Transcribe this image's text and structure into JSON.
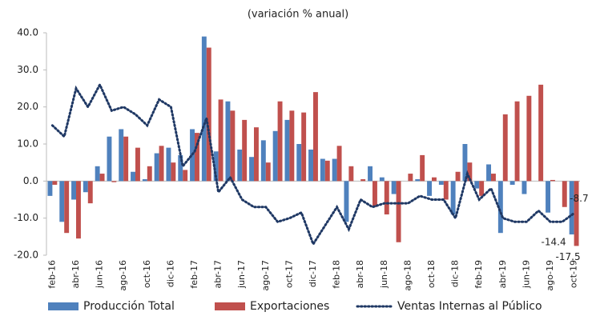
{
  "chart_data": {
    "type": "bar_line",
    "title": "(variación % anual)",
    "categories": [
      "feb-16",
      null,
      "abr-16",
      null,
      "jun-16",
      null,
      "ago-16",
      null,
      "oct-16",
      null,
      "dic-16",
      null,
      "feb-17",
      null,
      "abr-17",
      null,
      "jun-17",
      null,
      "ago-17",
      null,
      "oct-17",
      null,
      "dic-17",
      null,
      "feb-18",
      null,
      "abr-18",
      null,
      "jun-18",
      null,
      "ago-18",
      null,
      "oct-18",
      null,
      "dic-18",
      null,
      "feb-19",
      null,
      "abr-19",
      null,
      "jun-19",
      null,
      "ago-19",
      null,
      "oct-19"
    ],
    "series": [
      {
        "name": "Producción Total",
        "color": "#4f81bd",
        "kind": "bar",
        "values": [
          -4,
          -11,
          -5,
          -3,
          4,
          12,
          14,
          2.5,
          0.5,
          7.5,
          9,
          7,
          14,
          39,
          8,
          21.5,
          8.5,
          6.5,
          11,
          13.5,
          16.5,
          10,
          8.5,
          6,
          6,
          -11,
          0,
          4,
          1,
          -3.5,
          0,
          0.5,
          -4,
          -1,
          -9,
          10,
          -2,
          4.5,
          -14,
          -1,
          -3.5,
          0,
          -8.5,
          0,
          -14.4
        ]
      },
      {
        "name": "Exportaciones",
        "color": "#c0504d",
        "kind": "bar",
        "values": [
          -1,
          -14,
          -15.5,
          -6,
          2,
          -0.3,
          12,
          9,
          4,
          9.5,
          5,
          3,
          13,
          36,
          22,
          19,
          16.5,
          14.5,
          5,
          21.5,
          19,
          18.5,
          24,
          5.5,
          9.5,
          4,
          0.5,
          -7,
          -9,
          -16.5,
          2,
          7,
          1,
          -5,
          2.5,
          5,
          -4,
          2,
          18,
          21.5,
          23,
          26,
          0.3,
          -7,
          -17.5
        ]
      },
      {
        "name": "Ventas Internas al Público",
        "color": "#1f3864",
        "kind": "line",
        "values": [
          15,
          12,
          25,
          20,
          26,
          19,
          20,
          18,
          15,
          22,
          20,
          4,
          8,
          17,
          -3,
          1,
          -5,
          -7,
          -7,
          -11,
          -10,
          -8.5,
          -17,
          -12,
          -7,
          -13,
          -5,
          -7,
          -6,
          -6,
          -6,
          -4,
          -5,
          -5,
          -10,
          2,
          -5,
          -2,
          -10,
          -11,
          -11,
          -8,
          -11,
          -11,
          -8.7
        ]
      }
    ],
    "ylim": [
      -20,
      40
    ],
    "yticks": [
      {
        "value": -20,
        "label": "-20.0"
      },
      {
        "value": -10,
        "label": "-10.0"
      },
      {
        "value": 0,
        "label": "0.0"
      },
      {
        "value": 10,
        "label": "10.0"
      },
      {
        "value": 20,
        "label": "20.0"
      },
      {
        "value": 30,
        "label": "30.0"
      },
      {
        "value": 40,
        "label": "40.0"
      }
    ],
    "grid": false,
    "legend": "bottom"
  }
}
